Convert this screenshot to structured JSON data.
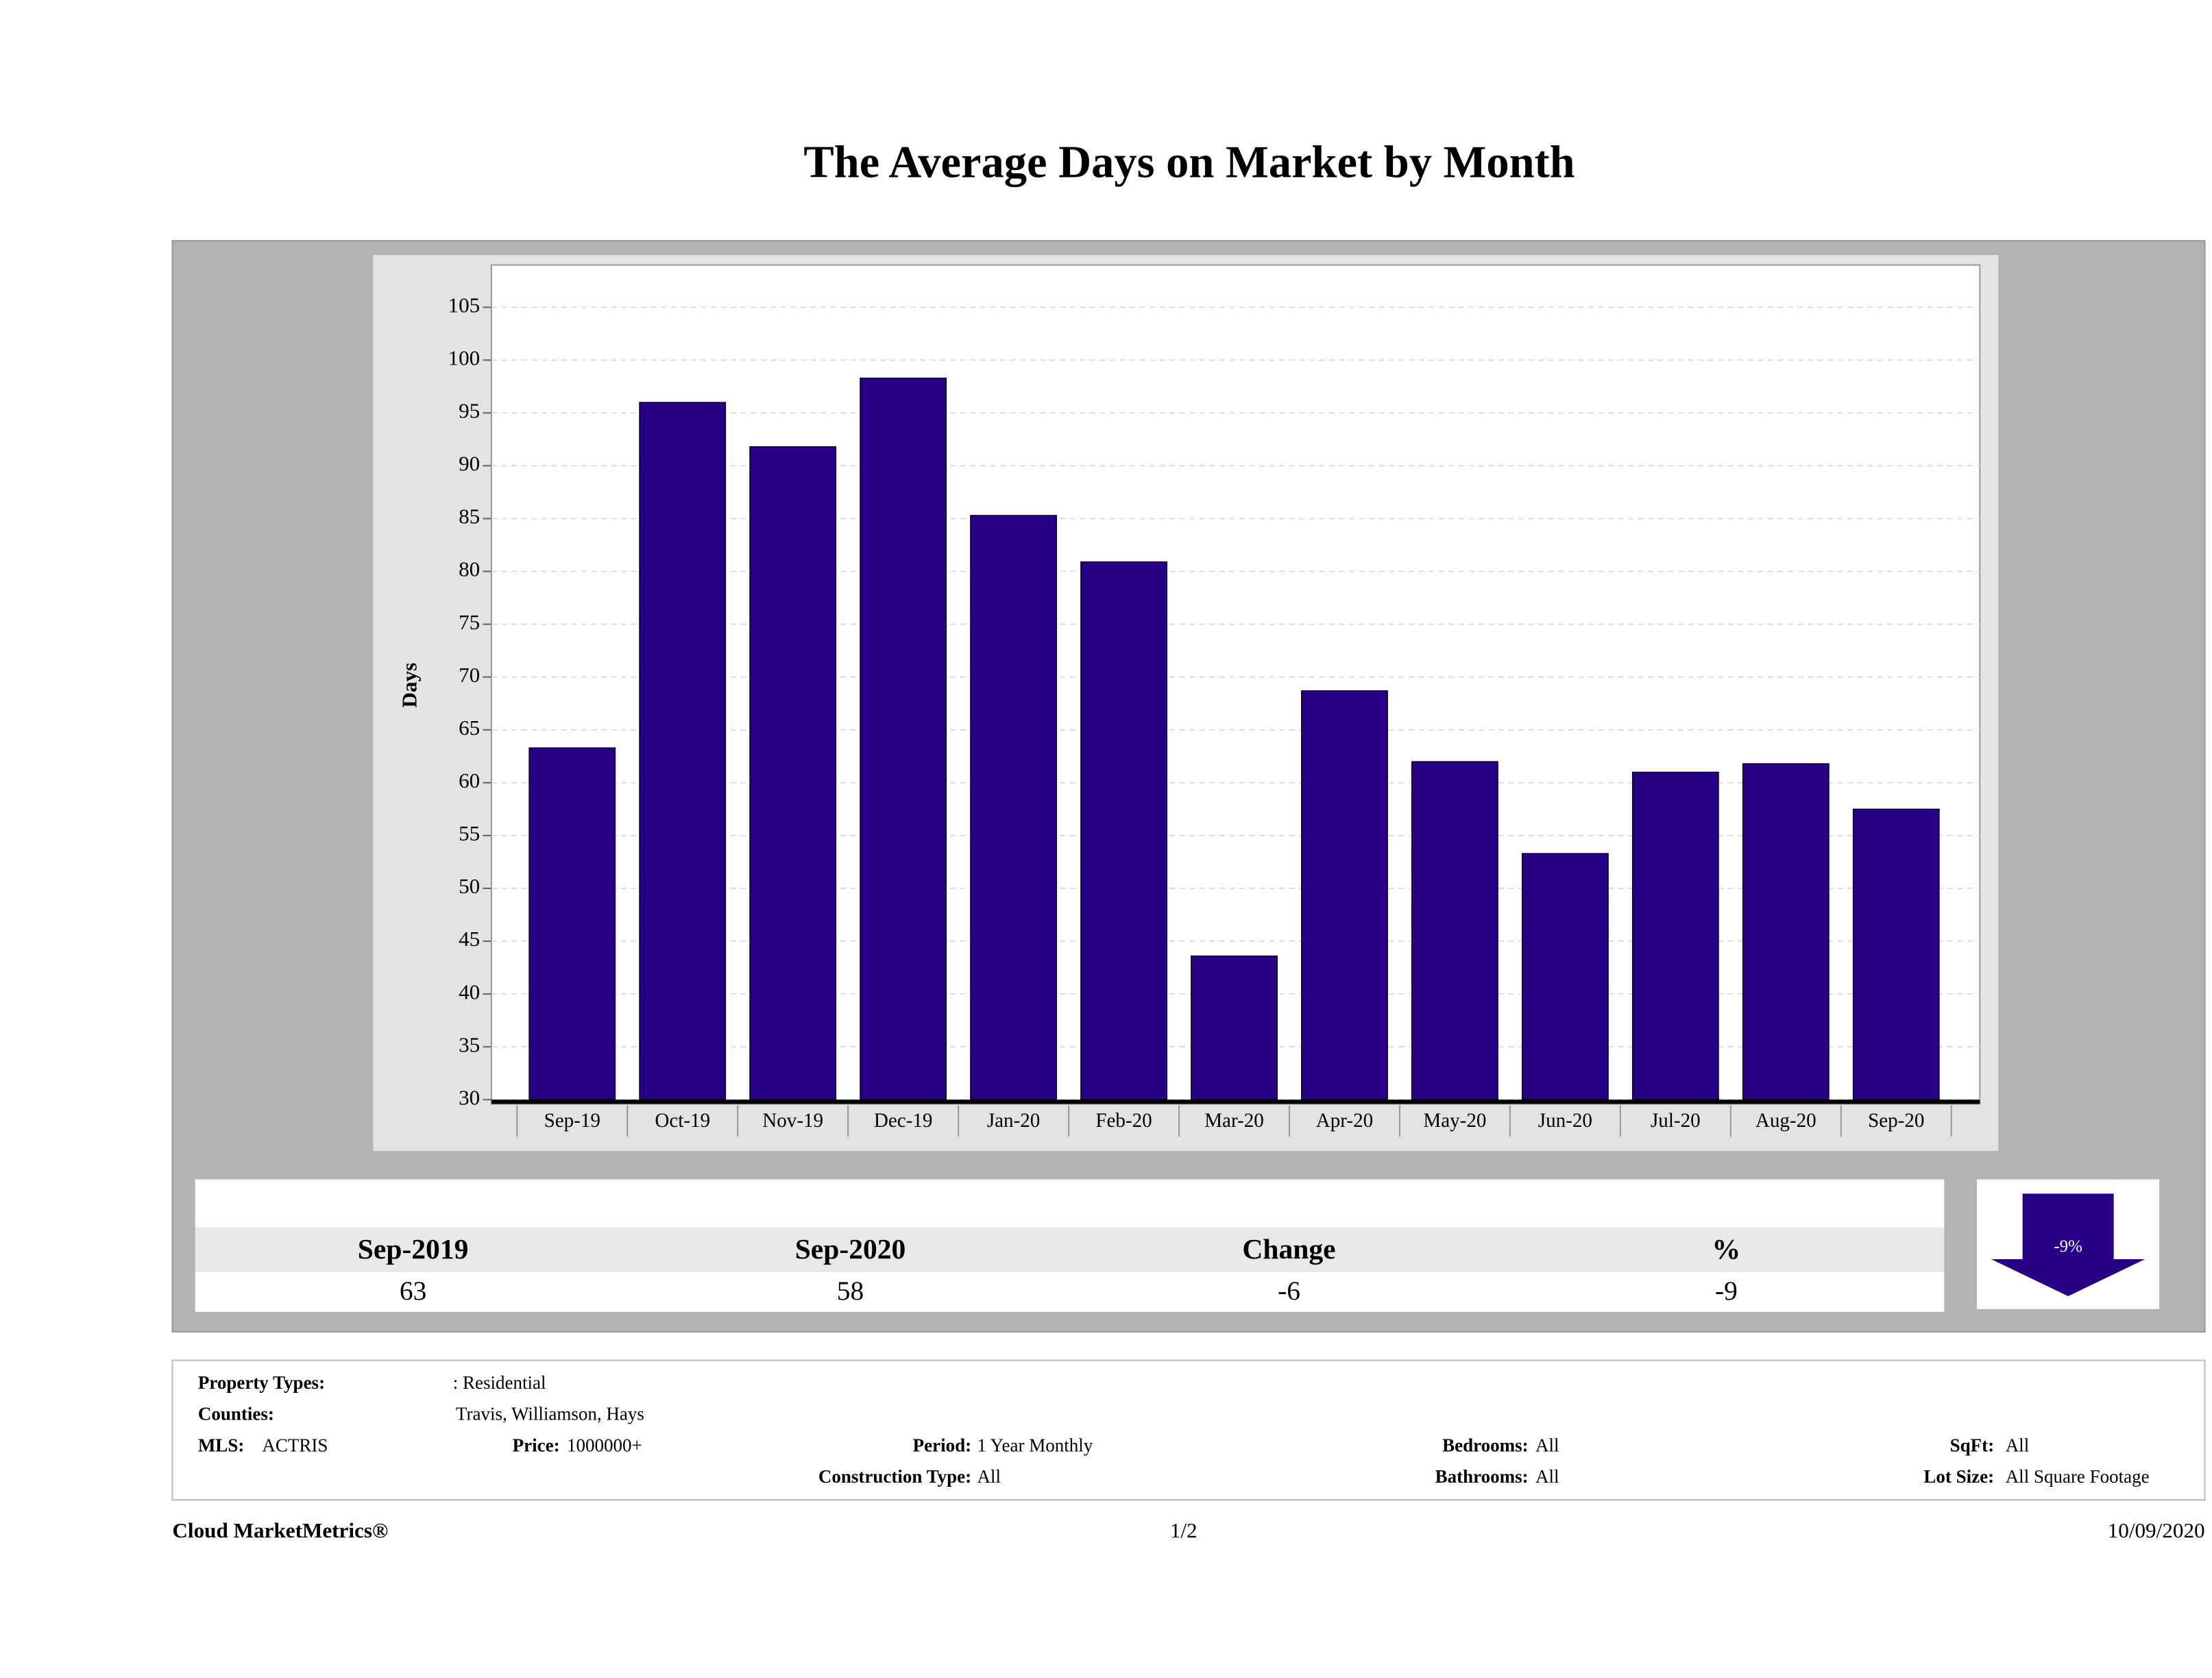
{
  "chart_data": {
    "type": "bar",
    "title": "The Average Days on Market by Month",
    "y_label": "Days",
    "categories": [
      "Sep-19",
      "Oct-19",
      "Nov-19",
      "Dec-19",
      "Jan-20",
      "Feb-20",
      "Mar-20",
      "Apr-20",
      "May-20",
      "Jun-20",
      "Jul-20",
      "Aug-20",
      "Sep-20"
    ],
    "values": [
      63.3,
      96,
      91.8,
      98.3,
      85.3,
      80.9,
      43.6,
      68.7,
      62,
      53.3,
      61,
      61.8,
      57.5
    ],
    "color": "#270087",
    "ylim": [
      30,
      109
    ],
    "yticks": [
      30,
      35,
      40,
      45,
      50,
      55,
      60,
      65,
      70,
      75,
      80,
      85,
      90,
      95,
      100,
      105
    ],
    "grid": true
  },
  "summary": {
    "headers": [
      "Sep-2019",
      "Sep-2020",
      "Change",
      "%"
    ],
    "values": [
      "63",
      "58",
      "-6",
      "-9"
    ],
    "arrow_label": "-9%"
  },
  "filters": {
    "property_types_label": "Property Types:",
    "property_types": ": Residential",
    "counties_label": "Counties:",
    "counties": "Travis, Williamson, Hays",
    "mls_label": "MLS:",
    "mls": "ACTRIS",
    "price_label": "Price:",
    "price": "1000000+",
    "period_label": "Period:",
    "period": "1 Year Monthly",
    "construction_label": "Construction Type:",
    "construction": "All",
    "bedrooms_label": "Bedrooms:",
    "bedrooms": "All",
    "bathrooms_label": "Bathrooms:",
    "bathrooms": "All",
    "sqft_label": "SqFt:",
    "sqft": "All",
    "lot_size_label": "Lot Size:",
    "lot_size": "All Square Footage"
  },
  "footer": {
    "brand": "Cloud MarketMetrics®",
    "page": "1/2",
    "date": "10/09/2020"
  }
}
